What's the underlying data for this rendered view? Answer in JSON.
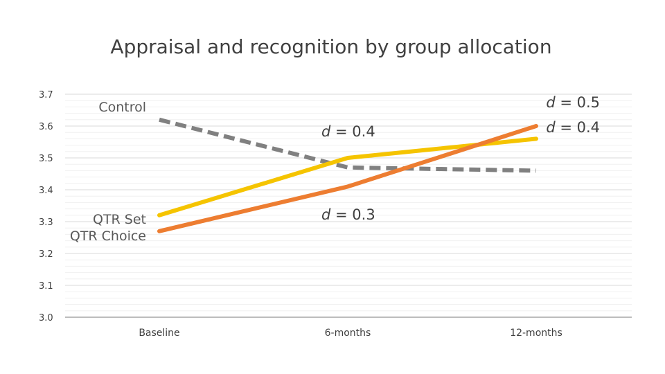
{
  "chart_data": {
    "type": "line",
    "title": "Appraisal and recognition by group allocation",
    "xlabel": "",
    "ylabel": "",
    "categories": [
      "Baseline",
      "6-months",
      "12-months"
    ],
    "ylim": [
      3.0,
      3.7
    ],
    "yticks": [
      "3.0",
      "3.1",
      "3.2",
      "3.3",
      "3.4",
      "3.5",
      "3.6",
      "3.7"
    ],
    "yticks_values": [
      3.0,
      3.1,
      3.2,
      3.3,
      3.4,
      3.5,
      3.6,
      3.7
    ],
    "grid": true,
    "series": [
      {
        "name": "Control",
        "values": [
          3.62,
          3.47,
          3.46
        ],
        "color": "#808080",
        "style": "dashed"
      },
      {
        "name": "QTR Set",
        "values": [
          3.32,
          3.5,
          3.56
        ],
        "color": "#F5C400",
        "style": "solid"
      },
      {
        "name": "QTR Choice",
        "values": [
          3.27,
          3.41,
          3.6
        ],
        "color": "#ED7D31",
        "style": "solid"
      }
    ],
    "annotations": [
      {
        "id": "d-6m-upper",
        "prefix": "d",
        "text": " = 0.4"
      },
      {
        "id": "d-6m-lower",
        "prefix": "d",
        "text": " = 0.3"
      },
      {
        "id": "d-12m-upper",
        "prefix": "d",
        "text": " = 0.5"
      },
      {
        "id": "d-12m-lower",
        "prefix": "d",
        "text": " = 0.4"
      }
    ]
  }
}
